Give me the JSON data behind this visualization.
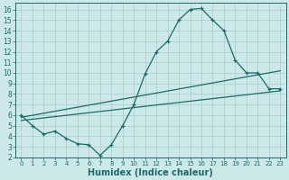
{
  "xlabel": "Humidex (Indice chaleur)",
  "background_color": "#cce8e8",
  "line_color": "#1a6b6b",
  "grid_color": "#a8cccc",
  "xlim": [
    -0.5,
    23.5
  ],
  "ylim": [
    2.0,
    16.6
  ],
  "xticks": [
    0,
    1,
    2,
    3,
    4,
    5,
    6,
    7,
    8,
    9,
    10,
    11,
    12,
    13,
    14,
    15,
    16,
    17,
    18,
    19,
    20,
    21,
    22,
    23
  ],
  "yticks": [
    2,
    3,
    4,
    5,
    6,
    7,
    8,
    9,
    10,
    11,
    12,
    13,
    14,
    15,
    16
  ],
  "line1_x": [
    0,
    1,
    2,
    3,
    4,
    5,
    6,
    7,
    8,
    9,
    10,
    11,
    12,
    13,
    14,
    15,
    16,
    17,
    18,
    19,
    20,
    21,
    22,
    23
  ],
  "line1_y": [
    6.0,
    5.0,
    4.2,
    4.5,
    3.8,
    3.3,
    3.2,
    2.2,
    3.2,
    5.0,
    7.0,
    9.9,
    12.0,
    13.0,
    15.0,
    16.0,
    16.1,
    15.0,
    14.0,
    11.2,
    10.0,
    10.0,
    8.5,
    8.5
  ],
  "line2_x": [
    0,
    23
  ],
  "line2_y": [
    5.8,
    10.2
  ],
  "line3_x": [
    0,
    23
  ],
  "line3_y": [
    5.5,
    8.3
  ],
  "xtick_fontsize": 5.0,
  "ytick_fontsize": 5.5,
  "xlabel_fontsize": 7.0
}
